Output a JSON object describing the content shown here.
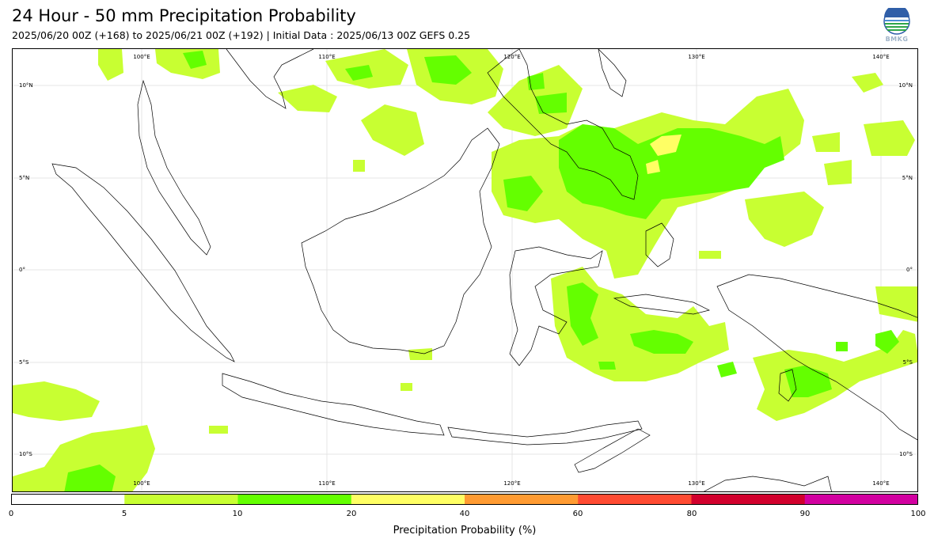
{
  "header": {
    "title": "24 Hour - 50 mm Precipitation Probability",
    "subtitle": "2025/06/20 00Z (+168) to 2025/06/21 00Z (+192) | Initial Data : 2025/06/13 00Z GEFS 0.25"
  },
  "logo": {
    "text": "BMKG"
  },
  "map": {
    "lon_range": [
      95,
      144
    ],
    "lat_range": [
      -12,
      12
    ],
    "lon_ticks": [
      "100°E",
      "110°E",
      "120°E",
      "130°E",
      "140°E"
    ],
    "lat_ticks": [
      "10°N",
      "5°N",
      "0°",
      "5°S",
      "10°S"
    ],
    "bottom_lon_ticks": [
      "100°E",
      "110°E",
      "120°E",
      "130°E",
      "140°E"
    ]
  },
  "colorbar": {
    "labels": [
      "0",
      "5",
      "10",
      "20",
      "40",
      "60",
      "80",
      "90",
      "100"
    ],
    "colors": [
      "#ffffff",
      "#c8ff32",
      "#64ff00",
      "#ffff64",
      "#ff9b32",
      "#ff4b32",
      "#d2002d",
      "#d200a0"
    ],
    "title": "Precipitation Probability (%)"
  }
}
